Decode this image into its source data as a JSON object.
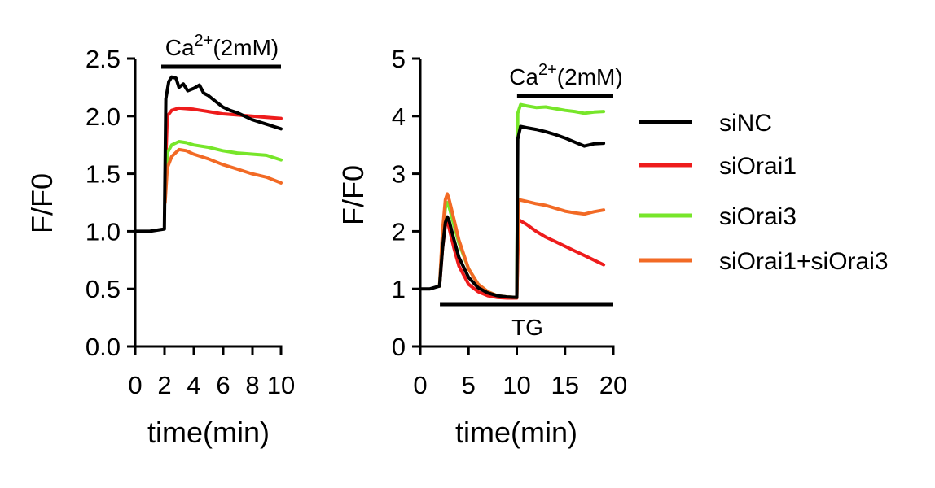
{
  "colors": {
    "axis": "#000000",
    "siNC": "#000000",
    "siOrai1": "#ee1c1c",
    "siOrai3": "#77e62a",
    "siOrai1_siOrai3": "#f26a25"
  },
  "chart_data": [
    {
      "type": "line",
      "ylabel": "F/F0",
      "xlabel": "time(min)",
      "xlim": [
        0,
        10
      ],
      "ylim": [
        0,
        2.5
      ],
      "xticks": [
        "0",
        "2",
        "4",
        "6",
        "8",
        "10"
      ],
      "yticks": [
        "0.0",
        "0.5",
        "1.0",
        "1.5",
        "2.0",
        "2.5"
      ],
      "annotations": [
        {
          "base": "Ca",
          "sup": "2+",
          "rest": "(2mM)",
          "x_start": 1.9,
          "x_end": 10
        }
      ],
      "series": [
        {
          "name": "siNC",
          "color": "#000000",
          "x": [
            0,
            0.5,
            1,
            1.5,
            2,
            2.1,
            2.3,
            2.5,
            2.8,
            3.0,
            3.3,
            3.6,
            4.0,
            4.4,
            4.7,
            5.0,
            5.5,
            6.0,
            6.5,
            7.0,
            7.5,
            8.0,
            8.5,
            9.0,
            9.5,
            10
          ],
          "y": [
            1.0,
            1.0,
            1.0,
            1.01,
            1.02,
            2.15,
            2.3,
            2.34,
            2.33,
            2.25,
            2.28,
            2.22,
            2.24,
            2.27,
            2.2,
            2.18,
            2.13,
            2.08,
            2.05,
            2.03,
            2.0,
            1.97,
            1.95,
            1.93,
            1.91,
            1.89
          ]
        },
        {
          "name": "siOrai1",
          "color": "#ee1c1c",
          "x": [
            2.05,
            2.2,
            2.5,
            3.0,
            4.0,
            5.0,
            6.0,
            7.0,
            8.0,
            9.0,
            10
          ],
          "y": [
            1.45,
            2.0,
            2.05,
            2.07,
            2.06,
            2.04,
            2.02,
            2.01,
            2.0,
            1.99,
            1.98
          ]
        },
        {
          "name": "siOrai3",
          "color": "#77e62a",
          "x": [
            2.05,
            2.2,
            2.5,
            3.0,
            3.5,
            4.0,
            5.0,
            6.0,
            7.0,
            8.0,
            9.0,
            10
          ],
          "y": [
            1.3,
            1.68,
            1.75,
            1.78,
            1.77,
            1.75,
            1.73,
            1.7,
            1.68,
            1.67,
            1.66,
            1.62
          ]
        },
        {
          "name": "siOrai1+siOrai3",
          "color": "#f26a25",
          "x": [
            2.05,
            2.2,
            2.5,
            3.0,
            3.5,
            4.0,
            5.0,
            6.0,
            7.0,
            8.0,
            9.0,
            10
          ],
          "y": [
            1.25,
            1.55,
            1.65,
            1.71,
            1.7,
            1.67,
            1.63,
            1.58,
            1.54,
            1.5,
            1.47,
            1.42
          ]
        }
      ]
    },
    {
      "type": "line",
      "ylabel": "F/F0",
      "xlabel": "time(min)",
      "xlim": [
        0,
        20
      ],
      "ylim": [
        0,
        5
      ],
      "xticks": [
        "0",
        "5",
        "10",
        "15",
        "20"
      ],
      "yticks": [
        "0",
        "1",
        "2",
        "3",
        "4",
        "5"
      ],
      "annotations": [
        {
          "base": "Ca",
          "sup": "2+",
          "rest": "(2mM)",
          "x_start": 10.2,
          "x_end": 20,
          "y": 4.3
        },
        {
          "base": "TG",
          "sup": "",
          "rest": "",
          "x_start": 2.2,
          "x_end": 20,
          "y": 0.72
        }
      ],
      "series": [
        {
          "name": "siNC",
          "color": "#000000",
          "x": [
            0,
            1,
            2,
            2.3,
            2.6,
            2.8,
            3.0,
            3.5,
            4,
            5,
            6,
            7,
            8,
            9,
            10,
            10.1,
            10.4,
            11,
            12,
            13,
            14,
            15,
            16,
            17,
            18,
            19
          ],
          "y": [
            1.0,
            1.0,
            1.05,
            1.7,
            2.15,
            2.25,
            2.18,
            1.85,
            1.55,
            1.2,
            1.02,
            0.93,
            0.88,
            0.86,
            0.85,
            3.6,
            3.82,
            3.8,
            3.77,
            3.73,
            3.68,
            3.62,
            3.55,
            3.48,
            3.52,
            3.53
          ]
        },
        {
          "name": "siOrai1",
          "color": "#ee1c1c",
          "x": [
            2,
            2.3,
            2.6,
            2.8,
            3.0,
            3.5,
            4,
            5,
            6,
            7,
            8,
            9,
            10,
            10.2,
            11,
            12,
            13,
            14,
            15,
            16,
            17,
            18,
            19
          ],
          "y": [
            1.05,
            1.7,
            2.1,
            2.2,
            2.05,
            1.7,
            1.4,
            1.08,
            0.95,
            0.88,
            0.85,
            0.84,
            0.84,
            2.2,
            2.12,
            2.0,
            1.9,
            1.82,
            1.74,
            1.66,
            1.58,
            1.5,
            1.42
          ]
        },
        {
          "name": "siOrai3",
          "color": "#77e62a",
          "x": [
            2,
            2.3,
            2.6,
            2.8,
            3.0,
            3.5,
            4,
            5,
            6,
            7,
            8,
            9,
            10,
            10.1,
            10.4,
            11,
            12,
            13,
            14,
            15,
            16,
            17,
            18,
            19
          ],
          "y": [
            1.05,
            1.9,
            2.4,
            2.5,
            2.42,
            2.1,
            1.8,
            1.35,
            1.08,
            0.95,
            0.88,
            0.86,
            0.85,
            4.05,
            4.2,
            4.18,
            4.15,
            4.16,
            4.13,
            4.1,
            4.08,
            4.05,
            4.07,
            4.08
          ]
        },
        {
          "name": "siOrai1+siOrai3",
          "color": "#f26a25",
          "x": [
            2,
            2.3,
            2.6,
            2.8,
            3.0,
            3.5,
            4,
            5,
            6,
            7,
            8,
            9,
            10,
            10.2,
            11,
            12,
            13,
            14,
            15,
            16,
            17,
            18,
            19
          ],
          "y": [
            1.05,
            2.0,
            2.55,
            2.65,
            2.55,
            2.2,
            1.85,
            1.35,
            1.08,
            0.95,
            0.88,
            0.86,
            0.85,
            2.55,
            2.52,
            2.48,
            2.45,
            2.4,
            2.35,
            2.32,
            2.3,
            2.34,
            2.37
          ]
        }
      ]
    }
  ],
  "legend": {
    "items": [
      {
        "label": "siNC",
        "color": "#000000"
      },
      {
        "label": "siOrai1",
        "color": "#ee1c1c"
      },
      {
        "label": "siOrai3",
        "color": "#77e62a"
      },
      {
        "label": "siOrai1+siOrai3",
        "color": "#f26a25"
      }
    ]
  }
}
